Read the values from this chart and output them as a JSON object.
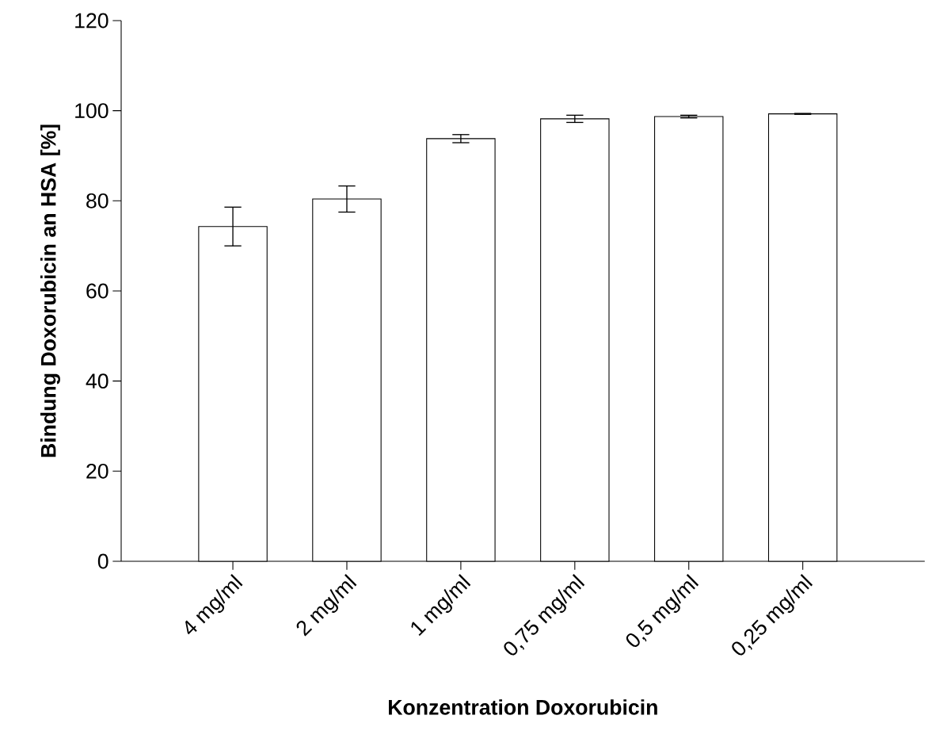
{
  "chart_data": {
    "type": "bar",
    "xlabel": "Konzentration Doxorubicin",
    "ylabel": "Bindung Doxorubicin an HSA [%]",
    "categories": [
      "4 mg/ml",
      "2 mg/ml",
      "1 mg/ml",
      "0,75 mg/ml",
      "0,5 mg/ml",
      "0,25 mg/ml"
    ],
    "values": [
      74.3,
      80.4,
      93.8,
      98.2,
      98.7,
      99.3
    ],
    "errors": [
      4.3,
      2.9,
      0.9,
      0.8,
      0.3,
      0.1
    ],
    "color": "#000000",
    "ylim": [
      0,
      120
    ],
    "yticks": [
      0,
      20,
      40,
      60,
      80,
      100,
      120
    ]
  }
}
